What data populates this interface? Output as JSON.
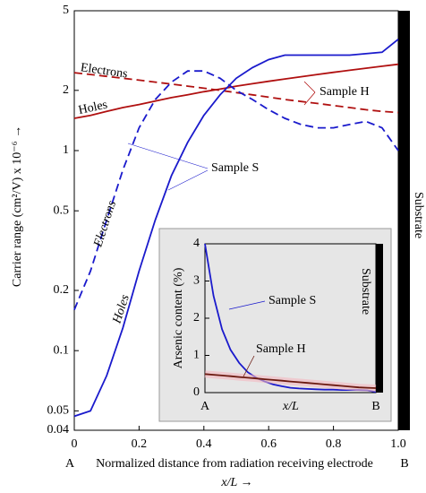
{
  "chart_data": [
    {
      "type": "line",
      "log_y": true,
      "y_label": "Carrier range (cm²/V)  x 10⁻⁶ →",
      "x_label": "Normalized distance from radiation receiving electrode",
      "x_label_unit": "x/L →",
      "endpoint_labels": [
        "A",
        "B"
      ],
      "substrate_label": "Substrate",
      "xlim": [
        0,
        1
      ],
      "xticks": [
        0,
        0.2,
        0.4,
        0.6,
        0.8,
        {
          "value": 1,
          "label": "1.0"
        }
      ],
      "ylim": [
        0.04,
        5
      ],
      "yticks": [
        0.04,
        0.05,
        0.1,
        0.2,
        0.5,
        1,
        2,
        5
      ],
      "x": [
        0,
        0.05,
        0.1,
        0.15,
        0.2,
        0.25,
        0.3,
        0.35,
        0.4,
        0.45,
        0.5,
        0.55,
        0.6,
        0.65,
        0.7,
        0.75,
        0.8,
        0.85,
        0.9,
        0.95,
        1
      ],
      "series": [
        {
          "name": "Sample H electrons",
          "color": "#b01010",
          "dashed": true,
          "values": [
            2.45,
            2.4,
            2.35,
            2.3,
            2.25,
            2.2,
            2.15,
            2.1,
            2.05,
            2.0,
            1.95,
            1.9,
            1.85,
            1.8,
            1.76,
            1.72,
            1.68,
            1.64,
            1.6,
            1.57,
            1.55
          ]
        },
        {
          "name": "Sample H holes",
          "color": "#b01010",
          "dashed": false,
          "values": [
            1.45,
            1.5,
            1.57,
            1.64,
            1.7,
            1.77,
            1.84,
            1.9,
            1.97,
            2.03,
            2.1,
            2.16,
            2.22,
            2.28,
            2.34,
            2.4,
            2.46,
            2.52,
            2.58,
            2.64,
            2.7
          ]
        },
        {
          "name": "Sample S electrons",
          "color": "#1a1acc",
          "dashed": true,
          "values": [
            0.16,
            0.25,
            0.45,
            0.8,
            1.3,
            1.8,
            2.2,
            2.5,
            2.5,
            2.3,
            2.0,
            1.8,
            1.6,
            1.45,
            1.35,
            1.3,
            1.3,
            1.35,
            1.4,
            1.3,
            1.0
          ]
        },
        {
          "name": "Sample S holes",
          "color": "#1a1acc",
          "dashed": false,
          "values": [
            0.047,
            0.05,
            0.075,
            0.13,
            0.25,
            0.45,
            0.75,
            1.1,
            1.5,
            1.9,
            2.3,
            2.6,
            2.85,
            3.0,
            3.0,
            3.0,
            3.0,
            3.0,
            3.05,
            3.1,
            3.6
          ]
        }
      ],
      "annotations": [
        "Electrons",
        "Holes",
        "Sample H",
        "Sample S",
        "Electrons",
        "Holes"
      ]
    },
    {
      "type": "line",
      "log_y": false,
      "y_label": "Arsenic content (%)",
      "x_label": "x/L",
      "substrate_label": "Substrate",
      "xlim": [
        0,
        1
      ],
      "xticks": [
        {
          "value": 0,
          "label": "A"
        },
        {
          "value": 1,
          "label": "B"
        }
      ],
      "ylim": [
        0,
        4
      ],
      "yticks": [
        0,
        1,
        2,
        3,
        4
      ],
      "x": [
        0,
        0.05,
        0.1,
        0.15,
        0.2,
        0.25,
        0.3,
        0.35,
        0.4,
        0.45,
        0.5,
        0.55,
        0.6,
        0.65,
        0.7,
        0.75,
        0.8,
        0.85,
        0.9,
        0.95,
        1
      ],
      "series": [
        {
          "name": "Sample S",
          "color": "#1a1acc",
          "values": [
            4.0,
            2.6,
            1.7,
            1.15,
            0.8,
            0.55,
            0.4,
            0.3,
            0.22,
            0.17,
            0.13,
            0.11,
            0.1,
            0.09,
            0.08,
            0.08,
            0.07,
            0.07,
            0.07,
            0.06,
            0.02
          ]
        },
        {
          "name": "Sample H",
          "color": "#6b1a10",
          "values": [
            0.5,
            0.48,
            0.46,
            0.44,
            0.42,
            0.4,
            0.38,
            0.36,
            0.34,
            0.32,
            0.3,
            0.28,
            0.26,
            0.24,
            0.22,
            0.2,
            0.18,
            0.16,
            0.14,
            0.13,
            0.12
          ]
        }
      ]
    }
  ]
}
